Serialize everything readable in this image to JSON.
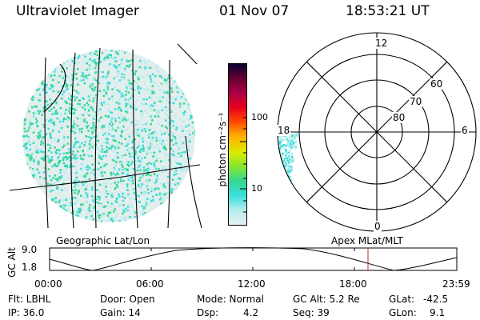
{
  "header": {
    "title": "Ultraviolet Imager",
    "date": "01 Nov 07",
    "time": "18:53:21 UT"
  },
  "colorbar": {
    "unit_label": "photon cm⁻²s⁻¹",
    "tick_100": "100",
    "tick_10": "10",
    "colors": [
      "#e6f0f0",
      "#b8ecec",
      "#3cdede",
      "#34d892",
      "#82e632",
      "#dceb00",
      "#ffb000",
      "#ff4a00",
      "#e6001e",
      "#aa0046",
      "#640032",
      "#0a0032"
    ]
  },
  "polar": {
    "mlt_12": "12",
    "mlt_18": "18",
    "mlt_6": "6",
    "mlt_0": "0",
    "lat_60": "60",
    "lat_70": "70",
    "lat_80": "80"
  },
  "labels": {
    "geo": "Geographic Lat/Lon",
    "apex": "Apex MLat/MLT"
  },
  "altitude_plot": {
    "axis_label": "GC Alt",
    "y_top": "9.0",
    "y_bottom": "1.8",
    "x_ticks": [
      "00:00",
      "06:00",
      "12:00",
      "18:00",
      "23:59"
    ],
    "current_time_marker": "18:53"
  },
  "status": {
    "flt": "Flt: LBHL",
    "ip": "IP: 36.0",
    "door": "Door: Open",
    "gain": "Gain: 14",
    "mode": "Mode: Normal",
    "dsp_label": "Dsp:",
    "dsp_value": "4.2",
    "gc_alt": "GC Alt: 5.2 Re",
    "seq": "Seq: 39",
    "glat_label": "GLat:",
    "glat_value": "-42.5",
    "glon_label": "GLon:",
    "glon_value": "9.1"
  }
}
